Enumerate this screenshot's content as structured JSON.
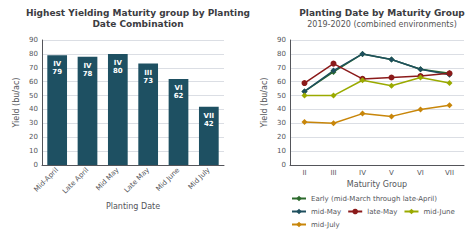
{
  "chart_data": [
    {
      "type": "bar",
      "title": "Highest Yielding Maturity group by Planting\nDate Combination",
      "xlabel": "Planting Date",
      "ylabel": "Yield (bu/ac)",
      "categories": [
        "Mid-April",
        "Late April",
        "Mid May",
        "Late May",
        "Mid June",
        "Mid July"
      ],
      "values": [
        79,
        78,
        80,
        73,
        62,
        42
      ],
      "value_labels": [
        "IV\n79",
        "IV\n78",
        "IV\n80",
        "III\n73",
        "VI\n62",
        "VII\n42"
      ],
      "data_labels": true,
      "color": "#1e5062",
      "ylim": [
        0,
        90
      ],
      "yticks": [
        0,
        10,
        20,
        30,
        40,
        50,
        60,
        70,
        80,
        90
      ],
      "grid": true
    },
    {
      "type": "line",
      "title": "Planting Date by Maturity Group",
      "subtitle": "2019-2020 (combined environments)",
      "xlabel": "Maturity Group",
      "ylabel": "Yield (bu/ac)",
      "categories": [
        "II",
        "III",
        "IV",
        "V",
        "VI",
        "VII"
      ],
      "series": [
        {
          "name": "Early (mid-March through late-April)",
          "color": "#2d6a2d",
          "marker": "diamond",
          "values": [
            53,
            67,
            80,
            76,
            69,
            66
          ]
        },
        {
          "name": "mid-May",
          "color": "#1e4f5e",
          "marker": "diamond",
          "values": [
            53,
            68,
            80,
            76,
            69,
            65
          ]
        },
        {
          "name": "late-May",
          "color": "#8b1a1a",
          "marker": "circle",
          "values": [
            59,
            73,
            62,
            63,
            64,
            66
          ]
        },
        {
          "name": "mid-June",
          "color": "#9aaa00",
          "marker": "diamond",
          "values": [
            50,
            50,
            61,
            57,
            63,
            59
          ]
        },
        {
          "name": "mid-July",
          "color": "#c8860a",
          "marker": "diamond",
          "values": [
            31,
            30,
            37,
            35,
            40,
            43
          ]
        }
      ],
      "ylim": [
        0,
        90
      ],
      "yticks": [
        0,
        10,
        20,
        30,
        40,
        50,
        60,
        70,
        80,
        90
      ],
      "grid": true,
      "legend": "bottom"
    }
  ]
}
